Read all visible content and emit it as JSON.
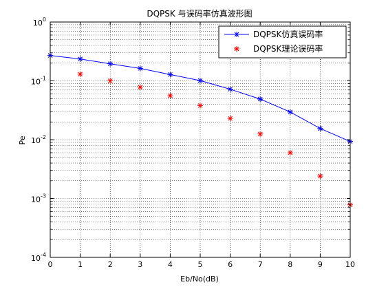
{
  "chart_data": {
    "type": "line",
    "title": "DQPSK 与误码率仿真波形图",
    "xlabel": "Eb/No(dB)",
    "ylabel": "Pe",
    "xlim": [
      0,
      10
    ],
    "ylim": [
      0.0001,
      1
    ],
    "yscale": "log",
    "grid": true,
    "legend_position": "top-right",
    "x_ticks": [
      "0",
      "1",
      "2",
      "3",
      "4",
      "5",
      "6",
      "7",
      "8",
      "9",
      "10"
    ],
    "y_ticks": [
      {
        "base": "10",
        "exp": "-4"
      },
      {
        "base": "10",
        "exp": "-3"
      },
      {
        "base": "10",
        "exp": "-2"
      },
      {
        "base": "10",
        "exp": "-1"
      },
      {
        "base": "10",
        "exp": "0"
      }
    ],
    "series": [
      {
        "name": "DQPSK仿真误码率",
        "style": "line-star",
        "color": "#0000ff",
        "x": [
          0,
          1,
          2,
          3,
          4,
          5,
          6,
          7,
          8,
          9,
          10
        ],
        "values": [
          0.27,
          0.235,
          0.195,
          0.163,
          0.128,
          0.101,
          0.072,
          0.049,
          0.0295,
          0.0155,
          0.0093
        ]
      },
      {
        "name": "DQPSK理论误码率",
        "style": "star",
        "color": "#ff0000",
        "x": [
          1,
          2,
          3,
          4,
          5,
          6,
          7,
          8,
          9,
          10
        ],
        "values": [
          0.13,
          0.1,
          0.078,
          0.056,
          0.038,
          0.023,
          0.0125,
          0.006,
          0.0024,
          0.00078
        ]
      }
    ]
  }
}
